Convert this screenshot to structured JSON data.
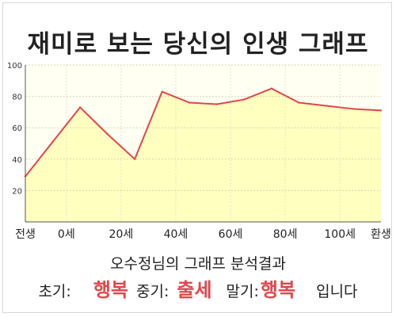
{
  "chart_data": {
    "type": "area",
    "title": "재미로 보는 당신의 인생 그래프",
    "x": [
      0,
      1,
      2,
      3,
      4,
      5,
      6,
      7,
      8,
      9,
      10,
      11,
      12,
      13
    ],
    "xtick_labels": [
      {
        "x": 0,
        "label": "전생"
      },
      {
        "x": 1.5,
        "label": "0세"
      },
      {
        "x": 3.5,
        "label": "20세"
      },
      {
        "x": 5.5,
        "label": "40세"
      },
      {
        "x": 7.5,
        "label": "60세"
      },
      {
        "x": 9.5,
        "label": "80세"
      },
      {
        "x": 11.5,
        "label": "100세"
      },
      {
        "x": 13,
        "label": "환생"
      }
    ],
    "values": [
      29,
      51,
      73,
      56,
      40,
      83,
      76,
      75,
      78,
      85,
      76,
      74,
      72,
      71
    ],
    "ylim": [
      0,
      100
    ],
    "yticks": [
      20,
      40,
      60,
      80,
      100
    ],
    "grid": true,
    "line_color": "#e0474c",
    "fill_color": "#ffffc0"
  },
  "summary": {
    "subtitle": "오수정님의 그래프 분석결과",
    "early_label": "초기:",
    "early_value": "행복",
    "middle_label": "중기:",
    "middle_value": "출세",
    "late_label": "말기:",
    "late_value": "행복",
    "ending": "입니다"
  }
}
